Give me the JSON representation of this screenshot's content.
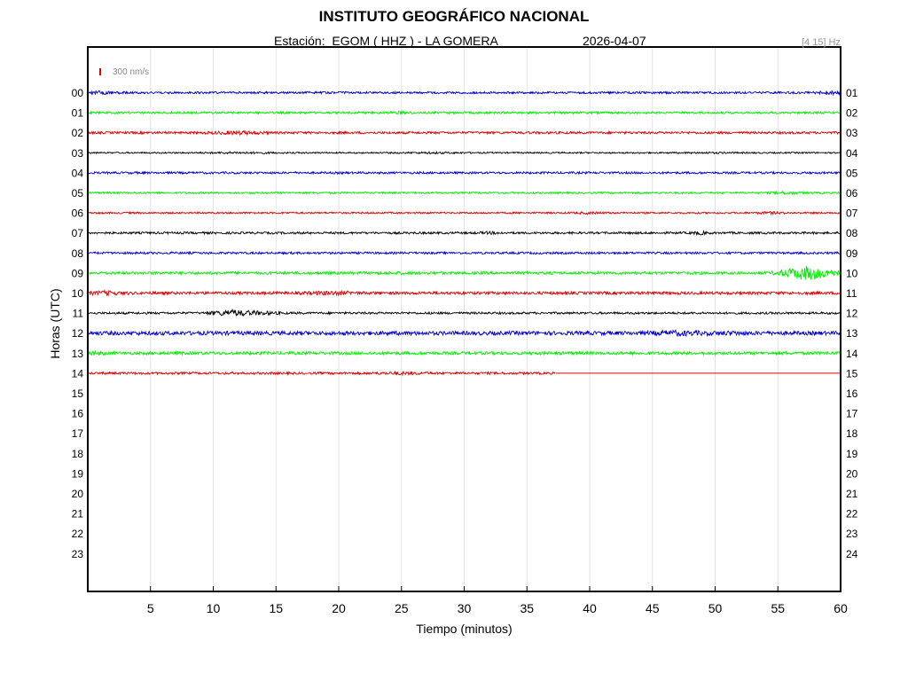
{
  "header": {
    "title": "INSTITUTO GEOGRÁFICO NACIONAL",
    "station": "Estación:  EGOM ( HHZ ) - LA GOMERA",
    "date": "2026-04-07",
    "filter": "[4 15] Hz"
  },
  "chart_data": {
    "type": "line",
    "xlabel": "Tiempo (minutos)",
    "ylabel": "Horas (UTC)",
    "xlim": [
      0,
      60
    ],
    "x_ticks": [
      5,
      10,
      15,
      20,
      25,
      30,
      35,
      40,
      45,
      50,
      55,
      60
    ],
    "left_hour_labels": [
      "00",
      "01",
      "02",
      "03",
      "04",
      "05",
      "06",
      "07",
      "08",
      "09",
      "10",
      "11",
      "12",
      "13",
      "14",
      "15",
      "16",
      "17",
      "18",
      "19",
      "20",
      "21",
      "22",
      "23"
    ],
    "right_hour_labels": [
      "01",
      "02",
      "03",
      "04",
      "05",
      "06",
      "07",
      "08",
      "09",
      "10",
      "11",
      "12",
      "13",
      "14",
      "15",
      "16",
      "17",
      "18",
      "19",
      "20",
      "21",
      "22",
      "23",
      "24"
    ],
    "scale_bar_label": "300 nm/s",
    "scale_bar_color": "#dd0000",
    "trace_colors": [
      "#0000cc",
      "#00ee00",
      "#dd0000",
      "#000000"
    ],
    "series": [
      {
        "hour": 0,
        "end_minute": 60,
        "amplitude": 1.2,
        "events": [
          [
            0.3,
            3,
            1.6
          ],
          [
            59.5,
            2,
            1.5
          ]
        ]
      },
      {
        "hour": 1,
        "end_minute": 60,
        "amplitude": 1.2,
        "events": [
          [
            25,
            2,
            0.5
          ]
        ]
      },
      {
        "hour": 2,
        "end_minute": 60,
        "amplitude": 1.3,
        "events": [
          [
            12,
            3,
            1.3
          ]
        ]
      },
      {
        "hour": 3,
        "end_minute": 60,
        "amplitude": 0.8,
        "events": [
          [
            12.2,
            4,
            0.6
          ],
          [
            27.5,
            4,
            0.4
          ],
          [
            50,
            4,
            0.3
          ]
        ]
      },
      {
        "hour": 4,
        "end_minute": 60,
        "amplitude": 1.2,
        "events": []
      },
      {
        "hour": 5,
        "end_minute": 60,
        "amplitude": 1.0,
        "events": [
          [
            55.8,
            2,
            1.0
          ]
        ]
      },
      {
        "hour": 6,
        "end_minute": 60,
        "amplitude": 1.0,
        "events": [
          [
            40,
            2,
            0.6
          ],
          [
            54.5,
            1.5,
            0.7
          ]
        ]
      },
      {
        "hour": 7,
        "end_minute": 60,
        "amplitude": 1.2,
        "events": [
          [
            32,
            1.5,
            0.6
          ],
          [
            48.8,
            1,
            1.2
          ]
        ]
      },
      {
        "hour": 8,
        "end_minute": 60,
        "amplitude": 1.2,
        "events": []
      },
      {
        "hour": 9,
        "end_minute": 60,
        "amplitude": 1.5,
        "events": [
          [
            25,
            2,
            0.4
          ],
          [
            57.3,
            3,
            7
          ]
        ]
      },
      {
        "hour": 10,
        "end_minute": 60,
        "amplitude": 1.6,
        "events": [
          [
            1.5,
            2,
            1.4
          ],
          [
            19.5,
            3,
            1.2
          ]
        ]
      },
      {
        "hour": 11,
        "end_minute": 60,
        "amplitude": 1.2,
        "events": [
          [
            11.5,
            2.5,
            2.8
          ],
          [
            14,
            2,
            1.3
          ]
        ]
      },
      {
        "hour": 12,
        "end_minute": 60,
        "amplitude": 2.2,
        "events": [
          [
            47,
            3,
            1.4
          ],
          [
            51,
            2,
            0.8
          ]
        ]
      },
      {
        "hour": 13,
        "end_minute": 60,
        "amplitude": 1.7,
        "events": [
          [
            0.2,
            1.5,
            1.4
          ]
        ]
      },
      {
        "hour": 14,
        "end_minute": 37.3,
        "amplitude": 1.3,
        "events": [
          [
            25,
            3,
            0.8
          ]
        ]
      }
    ]
  }
}
